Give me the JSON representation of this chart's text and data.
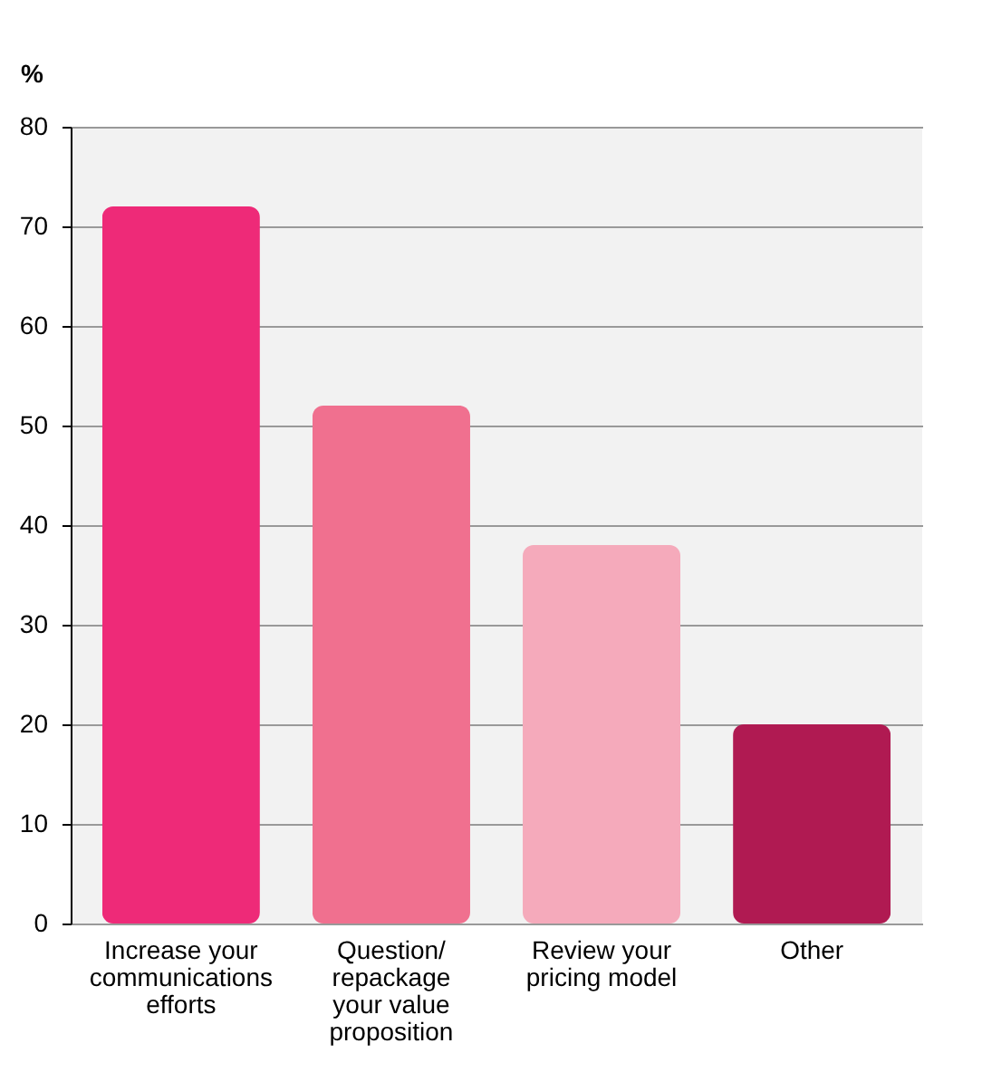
{
  "chart_data": {
    "type": "bar",
    "ylabel": "%",
    "categories": [
      "Increase your communications efforts",
      "Question/ repackage your value proposition",
      "Review your pricing model",
      "Other"
    ],
    "values": [
      72,
      52,
      38,
      20
    ],
    "colors": [
      "#ee2a78",
      "#f0708f",
      "#f5aabb",
      "#b01a52"
    ],
    "ylim": [
      0,
      80
    ],
    "yticks": [
      0,
      10,
      20,
      30,
      40,
      50,
      60,
      70,
      80
    ],
    "grid": "y"
  }
}
